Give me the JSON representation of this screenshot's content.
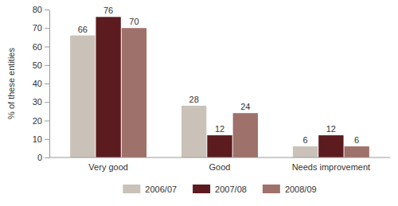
{
  "chart_data": {
    "type": "bar",
    "y_label": "% of these entities",
    "categories": [
      "Very good",
      "Good",
      "Needs improvement"
    ],
    "series": [
      {
        "name": "2006/07",
        "color": "#cac2b8",
        "values": [
          66,
          28,
          6
        ]
      },
      {
        "name": "2007/08",
        "color": "#5c1b1f",
        "values": [
          76,
          12,
          12
        ]
      },
      {
        "name": "2008/09",
        "color": "#9e716a",
        "values": [
          70,
          24,
          6
        ]
      }
    ],
    "ylim": [
      0,
      80
    ],
    "yticks": [
      0,
      10,
      20,
      30,
      40,
      50,
      60,
      70,
      80
    ],
    "grid": false,
    "data_labels": true,
    "legend": "bottom"
  }
}
